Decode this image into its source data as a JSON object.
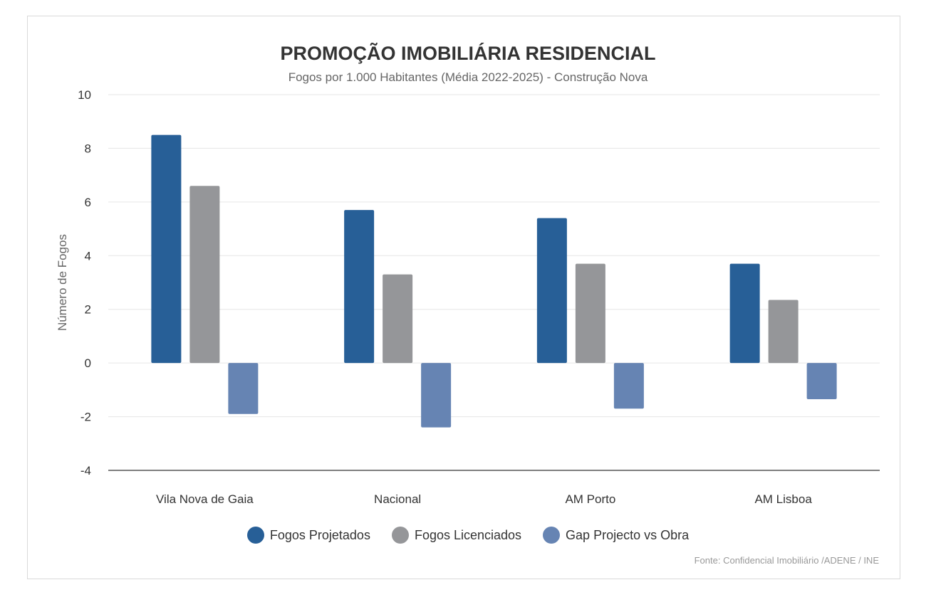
{
  "chart_data": {
    "type": "bar",
    "title": "PROMOÇÃO IMOBILIÁRIA RESIDENCIAL",
    "subtitle": "Fogos por 1.000 Habitantes (Média 2022-2025) - Construção Nova",
    "xlabel": "",
    "ylabel": "Número de Fogos",
    "ylim": [
      -4,
      10
    ],
    "yticks": [
      -4,
      -2,
      0,
      2,
      4,
      6,
      8,
      10
    ],
    "grid": true,
    "legend_position": "bottom",
    "categories": [
      "Vila Nova de Gaia",
      "Nacional",
      "AM Porto",
      "AM Lisboa"
    ],
    "series": [
      {
        "name": "Fogos Projetados",
        "color": "#275f97",
        "values": [
          8.5,
          5.7,
          5.4,
          3.7
        ]
      },
      {
        "name": "Fogos Licenciados",
        "color": "#959699",
        "values": [
          6.6,
          3.3,
          3.7,
          2.35
        ]
      },
      {
        "name": "Gap Projecto vs Obra",
        "color": "#6684b3",
        "values": [
          -1.9,
          -2.4,
          -1.7,
          -1.35
        ]
      }
    ],
    "source": "Fonte: Confidencial Imobiliário /ADENE / INE"
  }
}
